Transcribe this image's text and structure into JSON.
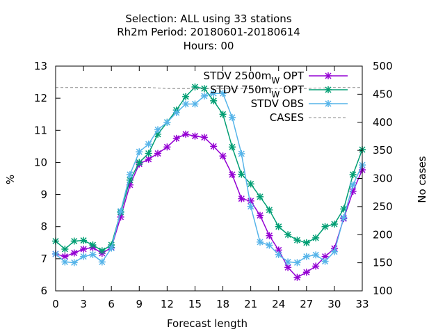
{
  "chart_data": {
    "type": "line",
    "title_lines": [
      "Selection: ALL using    33 stations",
      "Rh2m   Period: 20180601-20180614",
      "Hours:  00"
    ],
    "xlabel": "Forecast length",
    "ylabel": "%",
    "y2label": "No cases",
    "xlim": [
      0,
      33
    ],
    "ylim": [
      6,
      13
    ],
    "y2lim": [
      100,
      500
    ],
    "x_ticks": [
      0,
      3,
      6,
      9,
      12,
      15,
      18,
      21,
      24,
      27,
      30,
      33
    ],
    "y_ticks": [
      6,
      7,
      8,
      9,
      10,
      11,
      12,
      13
    ],
    "y2_ticks": [
      100,
      150,
      200,
      250,
      300,
      350,
      400,
      450,
      500
    ],
    "grid": false,
    "legend_position": "top-right",
    "x": [
      0,
      1,
      2,
      3,
      4,
      5,
      6,
      7,
      8,
      9,
      10,
      11,
      12,
      13,
      14,
      15,
      16,
      17,
      18,
      19,
      20,
      21,
      22,
      23,
      24,
      25,
      26,
      27,
      28,
      29,
      30,
      31,
      32,
      33
    ],
    "series": [
      {
        "name": "STDV 2500m_W OPT",
        "color": "#9400d3",
        "axis": "y",
        "marker": "x",
        "values": [
          7.15,
          7.07,
          7.18,
          7.3,
          7.35,
          7.17,
          7.35,
          8.3,
          9.3,
          9.95,
          10.1,
          10.28,
          10.48,
          10.75,
          10.88,
          10.82,
          10.78,
          10.5,
          10.2,
          9.62,
          8.87,
          8.8,
          8.35,
          7.72,
          7.27,
          6.73,
          6.42,
          6.58,
          6.77,
          7.07,
          7.32,
          8.25,
          9.1,
          9.77
        ]
      },
      {
        "name": "STDV 750m_W OPT",
        "color": "#009e73",
        "axis": "y",
        "marker": "x",
        "values": [
          7.55,
          7.3,
          7.55,
          7.57,
          7.43,
          7.25,
          7.43,
          8.45,
          9.45,
          10.0,
          10.28,
          10.88,
          11.25,
          11.63,
          12.05,
          12.35,
          12.3,
          11.92,
          11.5,
          10.48,
          9.63,
          9.33,
          8.93,
          8.52,
          8.0,
          7.75,
          7.58,
          7.5,
          7.65,
          8.0,
          8.08,
          8.55,
          9.62,
          10.4
        ]
      },
      {
        "name": "STDV OBS",
        "color": "#56b4e9",
        "axis": "y",
        "marker": "x",
        "values": [
          7.15,
          6.9,
          6.88,
          7.07,
          7.13,
          6.9,
          7.33,
          8.48,
          9.62,
          10.33,
          10.57,
          11.02,
          11.25,
          11.55,
          11.82,
          11.82,
          12.07,
          12.15,
          12.15,
          11.4,
          10.27,
          8.63,
          7.52,
          7.42,
          7.13,
          6.9,
          6.88,
          7.07,
          7.12,
          6.92,
          7.22,
          8.28,
          9.3,
          9.92
        ]
      },
      {
        "name": "CASES",
        "color": "#888888",
        "axis": "y2",
        "marker": "none",
        "dashed": true,
        "values": [
          462,
          462,
          462,
          462,
          462,
          462,
          462,
          462,
          462,
          462,
          462,
          461,
          460,
          460,
          460,
          460,
          460,
          460,
          460,
          460,
          460,
          460,
          460,
          460,
          460,
          460,
          460,
          460,
          461,
          461,
          462,
          462,
          462,
          462
        ]
      }
    ]
  }
}
